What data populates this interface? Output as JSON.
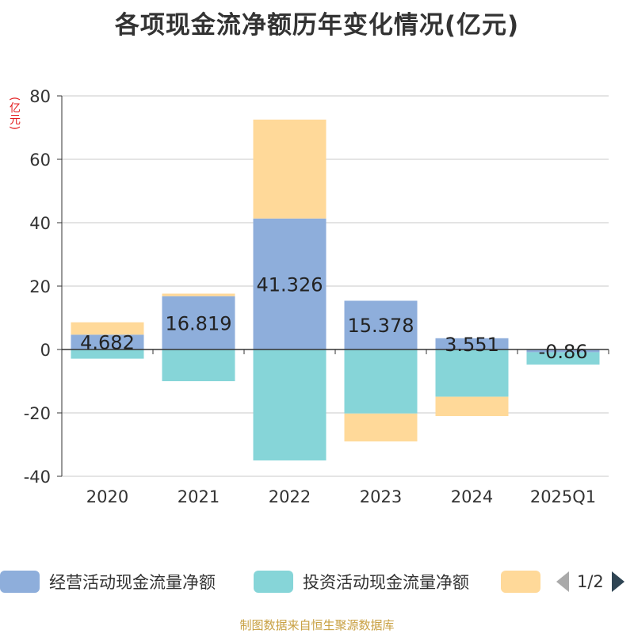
{
  "title": "各项现金流净额历年变化情况(亿元)",
  "unit_label": "(亿元)",
  "source": "制图数据来自恒生聚源数据库",
  "legend": {
    "page_indicator": "1/2",
    "items": [
      {
        "label": "经营活动现金流量净额",
        "color": "#8eaedb"
      },
      {
        "label": "投资活动现金流量净额",
        "color": "#86d5d8"
      },
      {
        "label": "",
        "color": "#ffd999"
      }
    ]
  },
  "chart_data": {
    "type": "bar",
    "stacked": true,
    "categories": [
      "2020",
      "2021",
      "2022",
      "2023",
      "2024",
      "2025Q1"
    ],
    "ylim": [
      -40,
      80
    ],
    "yticks": [
      -40,
      -20,
      0,
      20,
      40,
      60,
      80
    ],
    "grid": true,
    "legend_position": "bottom",
    "series": [
      {
        "name": "经营活动现金流量净额",
        "color": "#8eaedb",
        "values": [
          4.682,
          16.819,
          41.326,
          15.378,
          3.551,
          -0.86
        ],
        "labels": [
          "4.682",
          "16.819",
          "41.326",
          "15.378",
          "3.551",
          "-0.86"
        ]
      },
      {
        "name": "投资活动现金流量净额",
        "color": "#86d5d8",
        "values": [
          -2.9,
          -10.0,
          -35.0,
          -20.2,
          -14.9,
          -3.9
        ]
      },
      {
        "color": "#ffd999",
        "values": [
          3.9,
          0.8,
          31.2,
          -8.8,
          -6.1,
          0
        ]
      }
    ]
  }
}
